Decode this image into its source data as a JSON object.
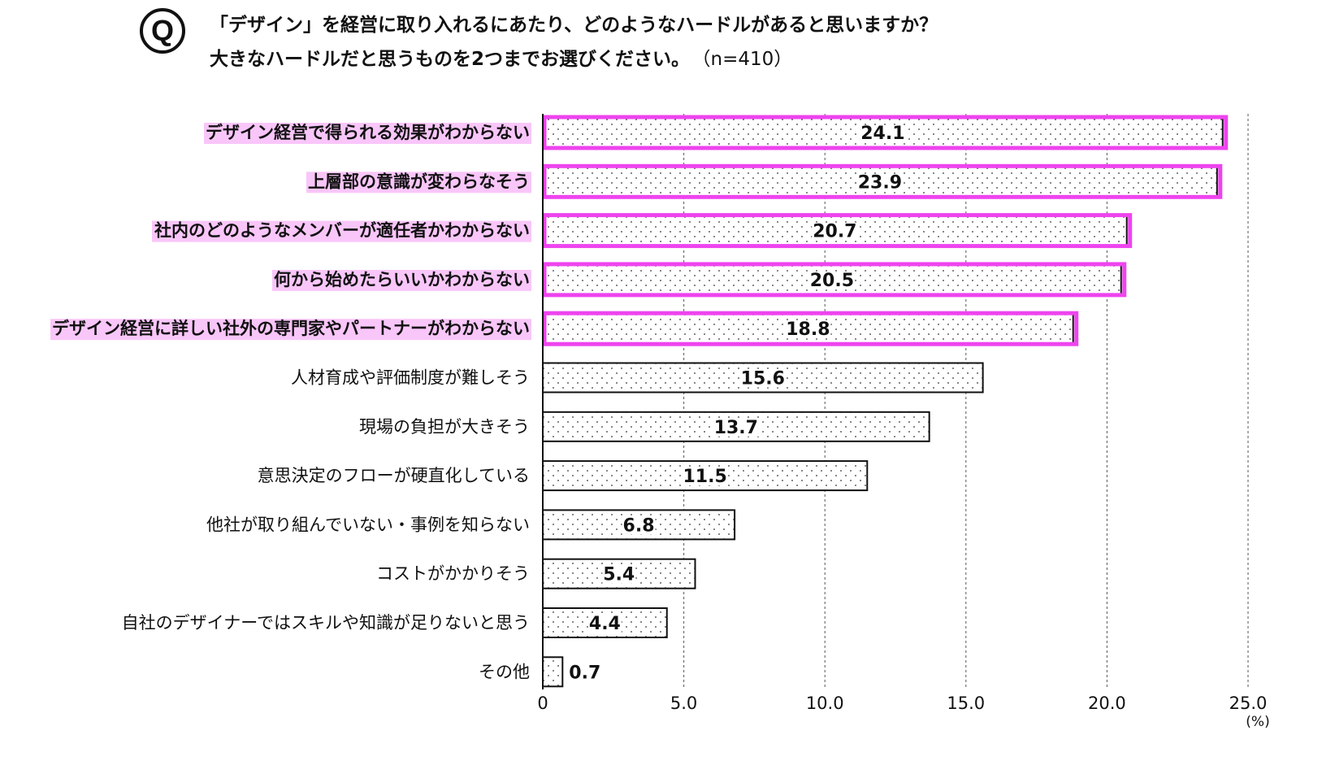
{
  "question": {
    "badge": "Q",
    "line1": "「デザイン」を経営に取り入れるにあたり、どのようなハードルがあると思いますか？",
    "line2": "大きなハードルだと思うものを2つまでお選びください。",
    "sample": "（n=410）"
  },
  "chart_data": {
    "type": "bar",
    "orientation": "horizontal",
    "categories": [
      "デザイン経営で得られる効果がわからない",
      "上層部の意識が変わらなそう",
      "社内のどのようなメンバーが適任者かわからない",
      "何から始めたらいいかわからない",
      "デザイン経営に詳しい社外の専門家やパートナーがわからない",
      "人材育成や評価制度が難しそう",
      "現場の負担が大きそう",
      "意思決定のフローが硬直化している",
      "他社が取り組んでいない・事例を知らない",
      "コストがかかりそう",
      "自社のデザイナーではスキルや知識が足りないと思う",
      "その他"
    ],
    "values": [
      24.1,
      23.9,
      20.7,
      20.5,
      18.8,
      15.6,
      13.7,
      11.5,
      6.8,
      5.4,
      4.4,
      0.7
    ],
    "value_labels": [
      "24.1",
      "23.9",
      "20.7",
      "20.5",
      "18.8",
      "15.6",
      "13.7",
      "11.5",
      "6.8",
      "5.4",
      "4.4",
      "0.7"
    ],
    "highlighted": [
      true,
      true,
      true,
      true,
      true,
      false,
      false,
      false,
      false,
      false,
      false,
      false
    ],
    "xlim": [
      0,
      25
    ],
    "xticks": [
      0,
      5,
      10,
      15,
      20,
      25
    ],
    "xtick_labels": [
      "0",
      "5.0",
      "10.0",
      "15.0",
      "20.0",
      "25.0"
    ],
    "unit_label": "(%)",
    "grid": "vertical dashed",
    "colors": {
      "highlight": "#ee44ee",
      "highlight_bg": "#f9c6f9",
      "bar_border": "#111111",
      "dot": "#333333"
    }
  }
}
